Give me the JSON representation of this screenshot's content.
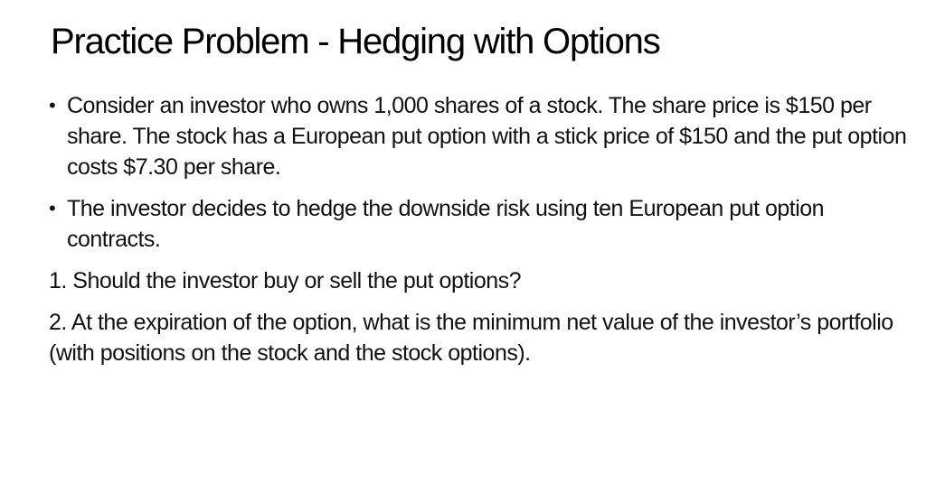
{
  "slide": {
    "title": "Practice Problem - Hedging with Options",
    "bullet_glyph": "•",
    "bullets": [
      "Consider an investor who owns 1,000 shares of a stock. The share price is $150 per share. The stock has a European put option with a stick price of $150 and the put option costs $7.30 per share.",
      "The investor decides to hedge the downside risk using ten European put option contracts."
    ],
    "questions": [
      "1. Should the investor buy or sell the put options?",
      "2. At the expiration of the option, what is the minimum net value of the investor’s portfolio (with positions on the stock and the stock options)."
    ]
  }
}
